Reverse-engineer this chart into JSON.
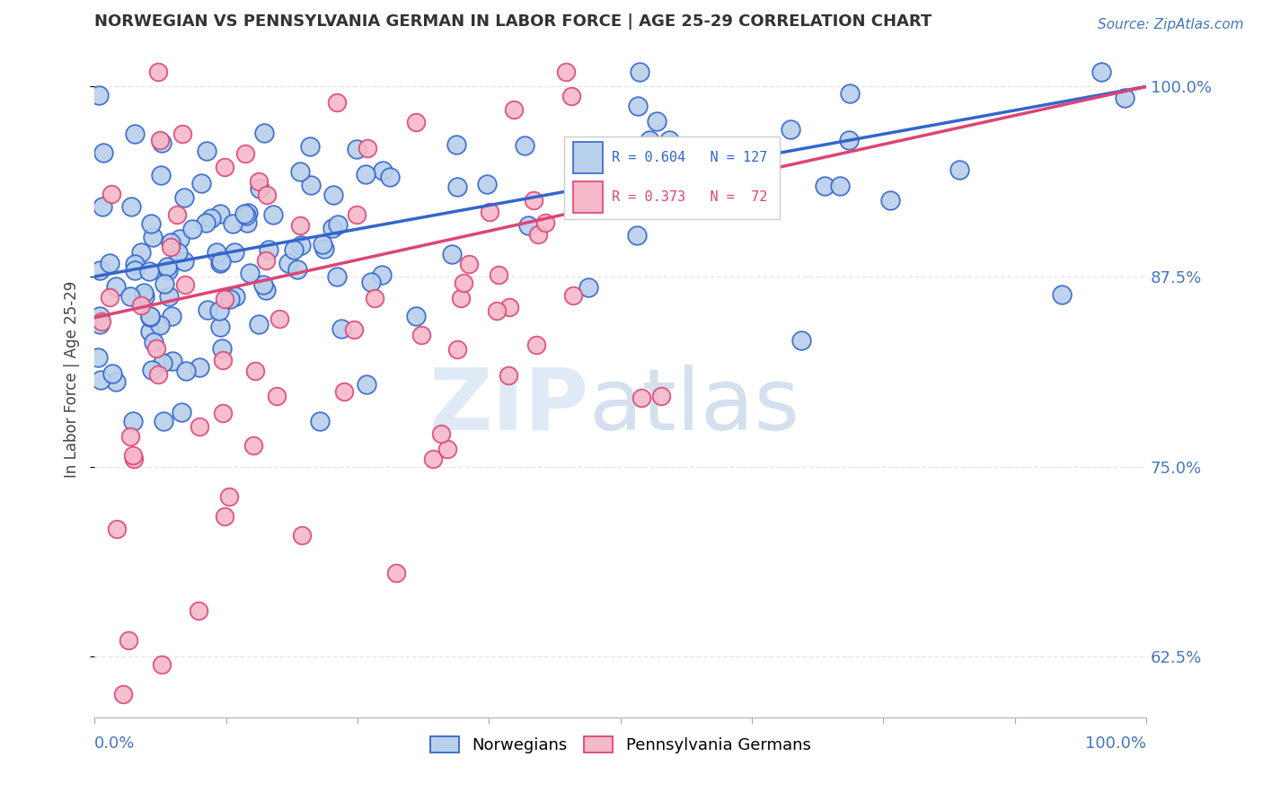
{
  "title": "NORWEGIAN VS PENNSYLVANIA GERMAN IN LABOR FORCE | AGE 25-29 CORRELATION CHART",
  "source": "Source: ZipAtlas.com",
  "ylabel": "In Labor Force | Age 25-29",
  "xlim": [
    0.0,
    1.0
  ],
  "ylim": [
    0.585,
    1.03
  ],
  "yticks": [
    0.625,
    0.75,
    0.875,
    1.0
  ],
  "ytick_labels": [
    "62.5%",
    "75.0%",
    "87.5%",
    "100.0%"
  ],
  "blue_R": 0.604,
  "blue_N": 127,
  "pink_R": 0.373,
  "pink_N": 72,
  "blue_color": "#b8d0ea",
  "blue_edge_color": "#3366cc",
  "pink_color": "#f5b8c8",
  "pink_edge_color": "#dd4477",
  "watermark_zip": "ZIP",
  "watermark_atlas": "atlas",
  "background_color": "#ffffff",
  "grid_color": "#e0e0e0",
  "title_color": "#333333",
  "axis_label_color": "#4477bb",
  "blue_line_intercept": 0.875,
  "blue_line_slope": 0.125,
  "pink_line_intercept": 0.848,
  "pink_line_slope": 0.152
}
